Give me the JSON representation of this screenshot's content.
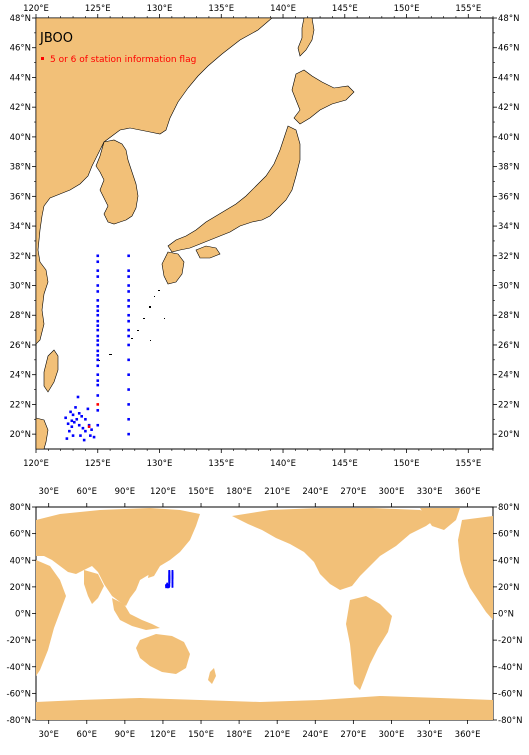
{
  "map_title": "JBOO",
  "legend": {
    "label": "5 or 6 of station information flag",
    "marker_color": "#ff0000"
  },
  "colors": {
    "land": "#f2c078",
    "station": "#0000ff",
    "flagged_station": "#ff0000"
  },
  "regional_map": {
    "lon_range": [
      120,
      157
    ],
    "lat_range": [
      19,
      48
    ],
    "lon_ticks": [
      "120°E",
      "125°E",
      "130°E",
      "135°E",
      "140°E",
      "145°E",
      "150°E",
      "155°E"
    ],
    "lat_ticks": [
      "20°N",
      "22°N",
      "24°N",
      "26°N",
      "28°N",
      "30°N",
      "32°N",
      "34°N",
      "36°N",
      "38°N",
      "40°N",
      "42°N",
      "44°N",
      "46°N",
      "48°N"
    ]
  },
  "global_map": {
    "lon_range": [
      20,
      380
    ],
    "lat_range": [
      -80,
      80
    ],
    "lon_ticks": [
      "30°E",
      "60°E",
      "90°E",
      "120°E",
      "150°E",
      "180°E",
      "210°E",
      "240°E",
      "270°E",
      "300°E",
      "330°E",
      "360°E"
    ],
    "lat_ticks": [
      "80°N",
      "60°N",
      "40°N",
      "20°N",
      "0°N",
      "-20°N",
      "-40°N",
      "-60°N",
      "-80°N"
    ]
  },
  "stations": {
    "line_125": [
      [
        125,
        20.6
      ],
      [
        125,
        21.6
      ],
      [
        125,
        22.6
      ],
      [
        125,
        23.3
      ],
      [
        125,
        23.6
      ],
      [
        125,
        24.0
      ],
      [
        125,
        24.6
      ],
      [
        125,
        25.0
      ],
      [
        125,
        25.3
      ],
      [
        125,
        25.6
      ],
      [
        125,
        26.0
      ],
      [
        125,
        26.3
      ],
      [
        125,
        26.6
      ],
      [
        125,
        27.0
      ],
      [
        125,
        27.3
      ],
      [
        125,
        27.6
      ],
      [
        125,
        28.0
      ],
      [
        125,
        28.3
      ],
      [
        125,
        28.6
      ],
      [
        125,
        29.0
      ],
      [
        125,
        29.6
      ],
      [
        125,
        30.0
      ],
      [
        125,
        30.6
      ],
      [
        125,
        31.0
      ],
      [
        125,
        31.6
      ],
      [
        125,
        32.0
      ]
    ],
    "line_127_5": [
      [
        127.5,
        20.0
      ],
      [
        127.5,
        21.0
      ],
      [
        127.5,
        22.0
      ],
      [
        127.5,
        23.0
      ],
      [
        127.5,
        24.0
      ],
      [
        127.5,
        25.0
      ],
      [
        127.5,
        26.0
      ],
      [
        127.5,
        26.6
      ],
      [
        127.5,
        27.0
      ],
      [
        127.5,
        27.6
      ],
      [
        127.5,
        28.0
      ],
      [
        127.5,
        28.6
      ],
      [
        127.5,
        29.0
      ],
      [
        127.5,
        29.6
      ],
      [
        127.5,
        30.0
      ],
      [
        127.5,
        30.6
      ],
      [
        127.5,
        31.0
      ],
      [
        127.5,
        32.0
      ]
    ],
    "cluster": [
      [
        122.5,
        19.7
      ],
      [
        122.7,
        20.2
      ],
      [
        122.9,
        20.5
      ],
      [
        123.1,
        20.8
      ],
      [
        123.3,
        21.0
      ],
      [
        123.0,
        21.3
      ],
      [
        122.8,
        21.5
      ],
      [
        123.2,
        21.8
      ],
      [
        123.5,
        20.6
      ],
      [
        123.8,
        20.4
      ],
      [
        124.0,
        20.2
      ],
      [
        124.3,
        20.6
      ],
      [
        124.5,
        20.3
      ],
      [
        124.7,
        19.8
      ],
      [
        123.6,
        19.9
      ],
      [
        123.9,
        19.6
      ],
      [
        123.0,
        19.9
      ],
      [
        122.6,
        20.7
      ],
      [
        122.4,
        21.1
      ],
      [
        123.7,
        21.2
      ],
      [
        124.2,
        21.7
      ],
      [
        123.4,
        22.5
      ],
      [
        124.0,
        21.0
      ],
      [
        122.9,
        20.9
      ],
      [
        123.5,
        21.4
      ],
      [
        124.4,
        19.9
      ]
    ],
    "flagged": [
      [
        125,
        22.0
      ],
      [
        124.3,
        20.5
      ]
    ]
  }
}
